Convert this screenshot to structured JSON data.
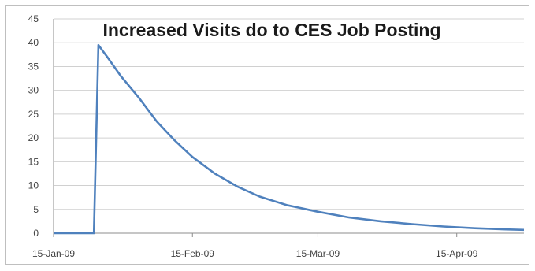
{
  "chart_data": {
    "type": "line",
    "title": "Increased Visits do to CES Job Posting",
    "xlabel": "",
    "ylabel": "",
    "x_axis": {
      "type": "date",
      "range": [
        "2009-01-15",
        "2009-04-30"
      ],
      "ticks": [
        {
          "date": "2009-01-15",
          "label": "15-Jan-09"
        },
        {
          "date": "2009-02-15",
          "label": "15-Feb-09"
        },
        {
          "date": "2009-03-15",
          "label": "15-Mar-09"
        },
        {
          "date": "2009-04-15",
          "label": "15-Apr-09"
        }
      ]
    },
    "ylim": [
      0,
      45
    ],
    "yticks": [
      0,
      5,
      10,
      15,
      20,
      25,
      30,
      35,
      40,
      45
    ],
    "grid": true,
    "legend": "none",
    "series": [
      {
        "color": "#4f81bd",
        "points": [
          {
            "x": "2009-01-15",
            "y": 0
          },
          {
            "x": "2009-01-21",
            "y": 0
          },
          {
            "x": "2009-01-24",
            "y": 0
          },
          {
            "x": "2009-01-25",
            "y": 39.5
          },
          {
            "x": "2009-01-27",
            "y": 37.0
          },
          {
            "x": "2009-01-30",
            "y": 33.0
          },
          {
            "x": "2009-02-03",
            "y": 28.5
          },
          {
            "x": "2009-02-07",
            "y": 23.5
          },
          {
            "x": "2009-02-11",
            "y": 19.5
          },
          {
            "x": "2009-02-15",
            "y": 16.0
          },
          {
            "x": "2009-02-20",
            "y": 12.5
          },
          {
            "x": "2009-02-25",
            "y": 9.8
          },
          {
            "x": "2009-03-02",
            "y": 7.7
          },
          {
            "x": "2009-03-08",
            "y": 5.9
          },
          {
            "x": "2009-03-15",
            "y": 4.5
          },
          {
            "x": "2009-03-22",
            "y": 3.3
          },
          {
            "x": "2009-03-29",
            "y": 2.5
          },
          {
            "x": "2009-04-05",
            "y": 1.9
          },
          {
            "x": "2009-04-12",
            "y": 1.4
          },
          {
            "x": "2009-04-19",
            "y": 1.05
          },
          {
            "x": "2009-04-26",
            "y": 0.8
          },
          {
            "x": "2009-04-30",
            "y": 0.7
          }
        ]
      }
    ]
  }
}
